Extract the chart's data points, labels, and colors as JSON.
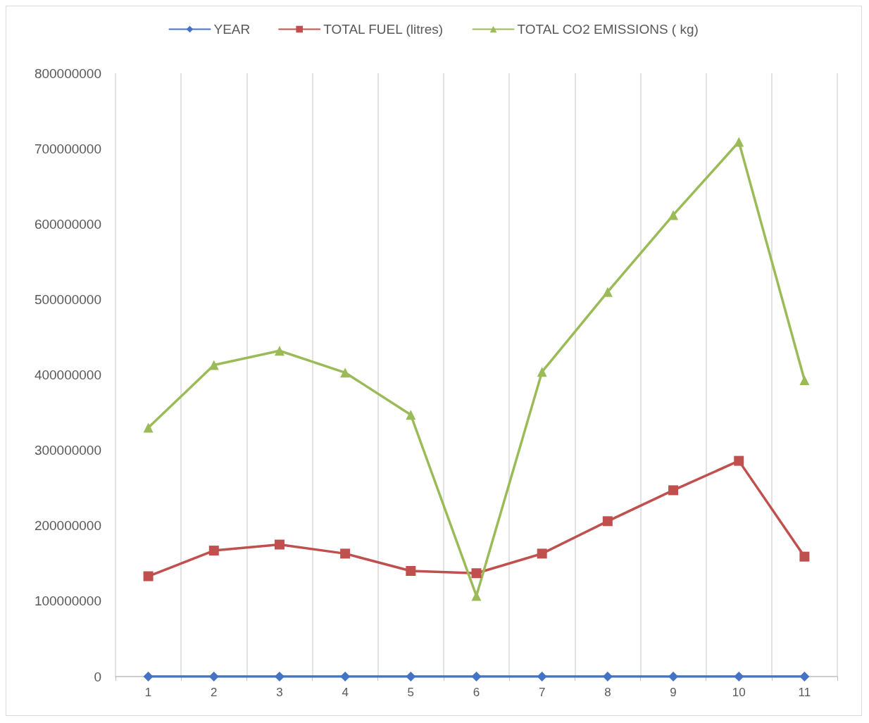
{
  "chart_data": {
    "type": "line",
    "categories": [
      "1",
      "2",
      "3",
      "4",
      "5",
      "6",
      "7",
      "8",
      "9",
      "10",
      "11"
    ],
    "series": [
      {
        "name": "YEAR",
        "color": "#4472c4",
        "marker": "diamond",
        "values": [
          0,
          0,
          0,
          0,
          0,
          0,
          0,
          0,
          0,
          0,
          0
        ]
      },
      {
        "name": "TOTAL FUEL (litres)",
        "color": "#c0504d",
        "marker": "square",
        "values": [
          133000000,
          167000000,
          175000000,
          163000000,
          140000000,
          137000000,
          163000000,
          206000000,
          247000000,
          286000000,
          159000000
        ]
      },
      {
        "name": "TOTAL CO2 EMISSIONS ( kg)",
        "color": "#9bbb59",
        "marker": "triangle",
        "values": [
          330000000,
          413000000,
          432000000,
          403000000,
          347000000,
          107000000,
          404000000,
          510000000,
          612000000,
          709000000,
          393000000
        ]
      }
    ],
    "ylim": [
      0,
      800000000
    ],
    "yticks": [
      0,
      100000000,
      200000000,
      300000000,
      400000000,
      500000000,
      600000000,
      700000000,
      800000000
    ],
    "grid": "x",
    "legend": "top",
    "line_style": "solid"
  }
}
